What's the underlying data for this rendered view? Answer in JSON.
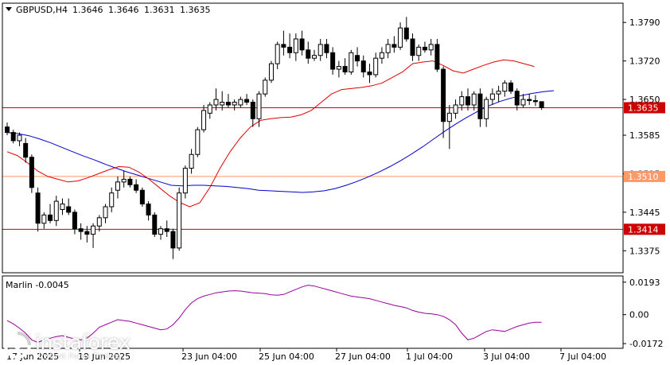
{
  "header": {
    "symbol": "GBPUSD,H4",
    "open": "1.3646",
    "high": "1.3646",
    "low": "1.3631",
    "close": "1.3635"
  },
  "indicator_label": "Marlin -0.0045",
  "branding": {
    "name": "instaforex",
    "tagline": "Instant Forex Trading"
  },
  "colors": {
    "candle": "#000000",
    "bull_body": "#ffffff",
    "ma_blue": "#0000cc",
    "ma_red": "#e00000",
    "hline_red": "#cc0000",
    "hline_salmon": "#ff9966",
    "osc": "#990099",
    "price_tag": "#e00000"
  },
  "chart_data": [
    {
      "type": "candlestick",
      "price_range": [
        1.3335,
        1.3825
      ],
      "y_ticks": [
        "1.3790",
        "1.3720",
        "1.3650",
        "1.3585",
        "1.3515",
        "1.3445",
        "1.3375"
      ],
      "x_ticks": [
        "17 Jun 2025",
        "19 Jun 2025",
        "23 Jun 04:00",
        "25 Jun 04:00",
        "27 Jun 04:00",
        "1 Jul 04:00",
        "3 Jul 04:00",
        "7 Jul 04:00"
      ],
      "current_price": "1.3635",
      "levels": [
        {
          "value": 1.3635,
          "label": "1.3635",
          "style": "red"
        },
        {
          "value": 1.351,
          "label": "1.3510",
          "style": "salmon"
        },
        {
          "value": 1.3414,
          "label": "1.3414",
          "style": "red"
        }
      ],
      "candles": [
        [
          1.36,
          1.3608,
          1.3585,
          1.359
        ],
        [
          1.359,
          1.3595,
          1.357,
          1.3575
        ],
        [
          1.3575,
          1.359,
          1.3565,
          1.3585
        ],
        [
          1.357,
          1.358,
          1.3535,
          1.3545
        ],
        [
          1.3545,
          1.355,
          1.348,
          1.349
        ],
        [
          1.348,
          1.349,
          1.341,
          1.3425
        ],
        [
          1.3425,
          1.3445,
          1.3415,
          1.344
        ],
        [
          1.344,
          1.346,
          1.3425,
          1.343
        ],
        [
          1.343,
          1.3475,
          1.342,
          1.3465
        ],
        [
          1.345,
          1.347,
          1.344,
          1.346
        ],
        [
          1.3455,
          1.347,
          1.344,
          1.3445
        ],
        [
          1.3445,
          1.345,
          1.3405,
          1.3415
        ],
        [
          1.3415,
          1.3425,
          1.3395,
          1.341
        ],
        [
          1.341,
          1.342,
          1.339,
          1.3405
        ],
        [
          1.3405,
          1.3425,
          1.338,
          1.342
        ],
        [
          1.342,
          1.344,
          1.341,
          1.3435
        ],
        [
          1.3435,
          1.346,
          1.3425,
          1.3455
        ],
        [
          1.3455,
          1.349,
          1.3445,
          1.348
        ],
        [
          1.3485,
          1.351,
          1.347,
          1.35
        ],
        [
          1.35,
          1.352,
          1.349,
          1.3505
        ],
        [
          1.3505,
          1.351,
          1.349,
          1.3495
        ],
        [
          1.3495,
          1.3505,
          1.348,
          1.3485
        ],
        [
          1.3485,
          1.349,
          1.3455,
          1.346
        ],
        [
          1.346,
          1.3465,
          1.343,
          1.344
        ],
        [
          1.344,
          1.3445,
          1.34,
          1.3405
        ],
        [
          1.3405,
          1.342,
          1.3395,
          1.3415
        ],
        [
          1.3415,
          1.343,
          1.34,
          1.341
        ],
        [
          1.341,
          1.3415,
          1.336,
          1.338
        ],
        [
          1.338,
          1.349,
          1.3375,
          1.348
        ],
        [
          1.348,
          1.353,
          1.347,
          1.3525
        ],
        [
          1.3525,
          1.356,
          1.3515,
          1.355
        ],
        [
          1.355,
          1.36,
          1.3545,
          1.3595
        ],
        [
          1.3595,
          1.364,
          1.359,
          1.363
        ],
        [
          1.3625,
          1.3645,
          1.3615,
          1.364
        ],
        [
          1.364,
          1.367,
          1.363,
          1.365
        ],
        [
          1.364,
          1.3665,
          1.363,
          1.3645
        ],
        [
          1.3645,
          1.366,
          1.3635,
          1.364
        ],
        [
          1.364,
          1.365,
          1.363,
          1.3645
        ],
        [
          1.364,
          1.3655,
          1.3635,
          1.365
        ],
        [
          1.365,
          1.366,
          1.364,
          1.3645
        ],
        [
          1.3645,
          1.365,
          1.36,
          1.3615
        ],
        [
          1.3615,
          1.3665,
          1.36,
          1.366
        ],
        [
          1.366,
          1.369,
          1.3655,
          1.3685
        ],
        [
          1.3685,
          1.372,
          1.368,
          1.3715
        ],
        [
          1.3715,
          1.3755,
          1.3705,
          1.375
        ],
        [
          1.375,
          1.3775,
          1.373,
          1.3745
        ],
        [
          1.3745,
          1.377,
          1.3725,
          1.3735
        ],
        [
          1.3735,
          1.377,
          1.372,
          1.376
        ],
        [
          1.376,
          1.3775,
          1.373,
          1.374
        ],
        [
          1.374,
          1.3755,
          1.3715,
          1.3725
        ],
        [
          1.3725,
          1.374,
          1.372,
          1.373
        ],
        [
          1.373,
          1.376,
          1.372,
          1.375
        ],
        [
          1.375,
          1.376,
          1.3725,
          1.3735
        ],
        [
          1.3735,
          1.3745,
          1.3695,
          1.3705
        ],
        [
          1.3705,
          1.372,
          1.369,
          1.371
        ],
        [
          1.371,
          1.3725,
          1.3695,
          1.37
        ],
        [
          1.37,
          1.374,
          1.3695,
          1.3735
        ],
        [
          1.373,
          1.3745,
          1.371,
          1.372
        ],
        [
          1.372,
          1.373,
          1.369,
          1.37
        ],
        [
          1.37,
          1.3715,
          1.368,
          1.3695
        ],
        [
          1.3695,
          1.3735,
          1.369,
          1.3725
        ],
        [
          1.3725,
          1.3745,
          1.3715,
          1.3735
        ],
        [
          1.3735,
          1.376,
          1.3725,
          1.375
        ],
        [
          1.375,
          1.3765,
          1.3735,
          1.3745
        ],
        [
          1.3745,
          1.379,
          1.374,
          1.378
        ],
        [
          1.378,
          1.38,
          1.3755,
          1.376
        ],
        [
          1.376,
          1.377,
          1.372,
          1.373
        ],
        [
          1.373,
          1.375,
          1.372,
          1.3745
        ],
        [
          1.3745,
          1.3755,
          1.3735,
          1.374
        ],
        [
          1.374,
          1.376,
          1.373,
          1.375
        ],
        [
          1.375,
          1.376,
          1.37,
          1.3705
        ],
        [
          1.3705,
          1.371,
          1.358,
          1.361
        ],
        [
          1.361,
          1.364,
          1.356,
          1.3625
        ],
        [
          1.3625,
          1.365,
          1.3615,
          1.364
        ],
        [
          1.364,
          1.3665,
          1.363,
          1.3655
        ],
        [
          1.3655,
          1.367,
          1.363,
          1.364
        ],
        [
          1.364,
          1.3665,
          1.363,
          1.366
        ],
        [
          1.366,
          1.367,
          1.36,
          1.3615
        ],
        [
          1.3615,
          1.3655,
          1.36,
          1.365
        ],
        [
          1.365,
          1.367,
          1.364,
          1.366
        ],
        [
          1.366,
          1.3675,
          1.3645,
          1.3665
        ],
        [
          1.3665,
          1.3685,
          1.3655,
          1.368
        ],
        [
          1.368,
          1.3685,
          1.366,
          1.3665
        ],
        [
          1.3665,
          1.367,
          1.363,
          1.364
        ],
        [
          1.364,
          1.366,
          1.3635,
          1.365
        ],
        [
          1.365,
          1.366,
          1.364,
          1.3648
        ],
        [
          1.3648,
          1.3658,
          1.3638,
          1.3646
        ],
        [
          1.3646,
          1.3646,
          1.3631,
          1.3635
        ]
      ],
      "ma_blue": [
        1.359,
        1.3588,
        1.3584,
        1.3578,
        1.3571,
        1.3563,
        1.3555,
        1.3547,
        1.354,
        1.3532,
        1.3525,
        1.3518,
        1.3512,
        1.3506,
        1.35,
        1.3494,
        1.3493,
        1.3494,
        1.3494,
        1.3493,
        1.3492,
        1.349,
        1.3488,
        1.3485,
        1.3484,
        1.3483,
        1.3482,
        1.3481,
        1.3482,
        1.3484,
        1.3488,
        1.3494,
        1.3501,
        1.3509,
        1.3518,
        1.3528,
        1.3539,
        1.3551,
        1.3564,
        1.3578,
        1.3592,
        1.3605,
        1.3617,
        1.3628,
        1.3638,
        1.3646,
        1.3652,
        1.3657,
        1.3661,
        1.3664,
        1.3666
      ],
      "ma_blue_start": 0,
      "ma_blue_step": 1.78,
      "ma_red": [
        1.3555,
        1.3548,
        1.3535,
        1.352,
        1.351,
        1.3505,
        1.35,
        1.3502,
        1.3508,
        1.3515,
        1.3522,
        1.3528,
        1.3527,
        1.3518,
        1.3505,
        1.349,
        1.3475,
        1.3463,
        1.3455,
        1.3462,
        1.349,
        1.3525,
        1.3555,
        1.358,
        1.36,
        1.3612,
        1.3615,
        1.3617,
        1.3618,
        1.3622,
        1.363,
        1.3645,
        1.366,
        1.3668,
        1.367,
        1.3672,
        1.3675,
        1.368,
        1.369,
        1.37,
        1.3715,
        1.3718,
        1.372,
        1.3712,
        1.3702,
        1.3698,
        1.3705,
        1.3712,
        1.3718,
        1.3722,
        1.372,
        1.3715,
        1.371
      ],
      "ma_red_start": 0,
      "ma_red_step": 1.65
    },
    {
      "type": "line",
      "series_label": "Marlin -0.0045",
      "y_ticks": [
        "0.0193",
        "0.00",
        "-0.0172"
      ],
      "y_range": [
        -0.02,
        0.023
      ],
      "values": [
        -0.0035,
        -0.0055,
        -0.008,
        -0.011,
        -0.015,
        -0.0165,
        -0.015,
        -0.014,
        -0.013,
        -0.0125,
        -0.0135,
        -0.0145,
        -0.015,
        -0.014,
        -0.011,
        -0.0075,
        -0.006,
        -0.0045,
        -0.003,
        -0.0035,
        -0.004,
        -0.005,
        -0.006,
        -0.007,
        -0.008,
        -0.009,
        -0.0085,
        -0.006,
        -0.002,
        0.003,
        0.007,
        0.0095,
        0.011,
        0.012,
        0.013,
        0.0135,
        0.014,
        0.0142,
        0.014,
        0.0135,
        0.013,
        0.0128,
        0.0125,
        0.0118,
        0.0115,
        0.012,
        0.0135,
        0.015,
        0.0165,
        0.0175,
        0.017,
        0.016,
        0.015,
        0.014,
        0.013,
        0.012,
        0.011,
        0.0105,
        0.01,
        0.0095,
        0.0085,
        0.0075,
        0.0065,
        0.0055,
        0.0048,
        0.004,
        0.0025,
        0.0015,
        0.0008,
        0.0005,
        0.0,
        -0.001,
        -0.003,
        -0.006,
        -0.011,
        -0.015,
        -0.014,
        -0.012,
        -0.01,
        -0.009,
        -0.0095,
        -0.01,
        -0.0085,
        -0.007,
        -0.006,
        -0.005,
        -0.0045,
        -0.0045
      ]
    }
  ]
}
